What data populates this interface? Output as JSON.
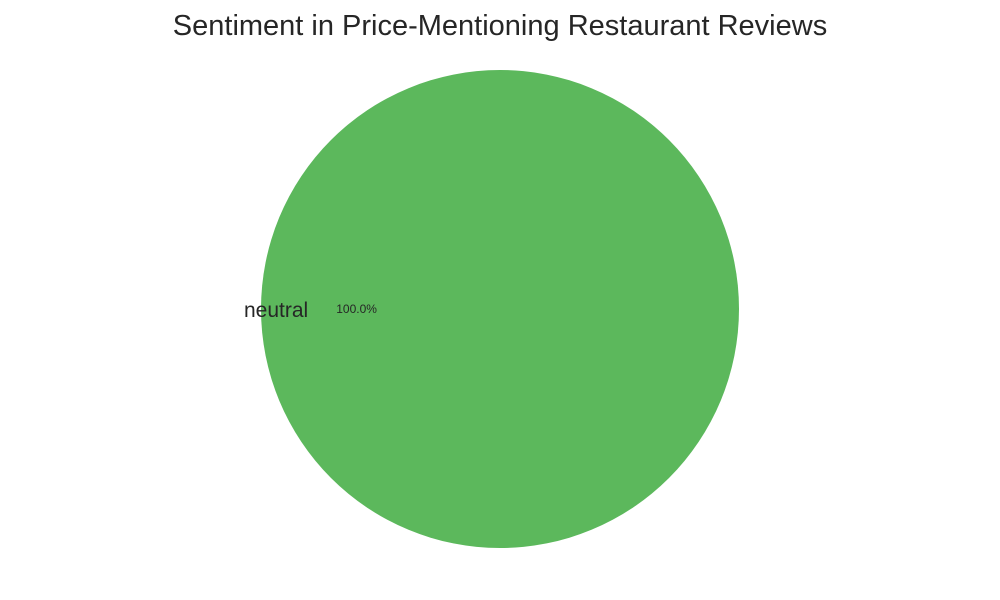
{
  "chart_data": {
    "type": "pie",
    "title": "Sentiment in Price-Mentioning Restaurant Reviews",
    "slices": [
      {
        "label": "neutral",
        "value": 100.0,
        "percent_label": "100.0%",
        "color": "#5cb85c"
      }
    ],
    "legend": "none"
  }
}
